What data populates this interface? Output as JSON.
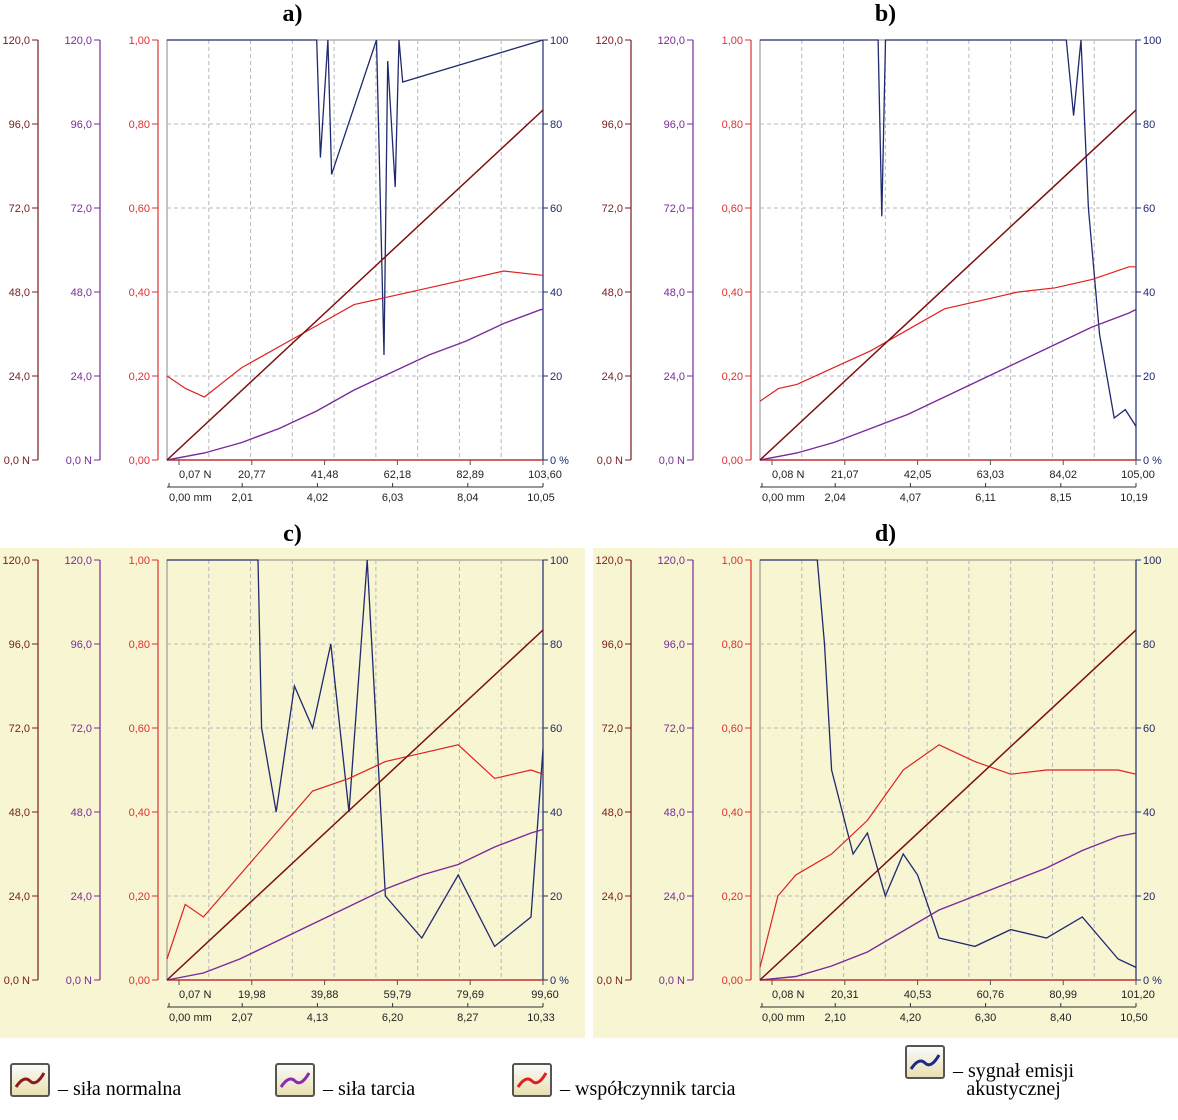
{
  "panels": [
    {
      "id": "a",
      "label": "a)",
      "background": "#ffffff",
      "force_ticks": [
        "0,07 N",
        "20,77",
        "41,48",
        "62,18",
        "82,89",
        "103,60"
      ],
      "dist_ticks": [
        "0,00 mm",
        "2,01",
        "4,02",
        "6,03",
        "8,04",
        "10,05"
      ]
    },
    {
      "id": "b",
      "label": "b)",
      "background": "#ffffff",
      "force_ticks": [
        "0,08 N",
        "21,07",
        "42,05",
        "63,03",
        "84,02",
        "105,00"
      ],
      "dist_ticks": [
        "0,00 mm",
        "2,04",
        "4,07",
        "6,11",
        "8,15",
        "10,19"
      ]
    },
    {
      "id": "c",
      "label": "c)",
      "background": "#f7f5d2",
      "force_ticks": [
        "0,07 N",
        "19,98",
        "39,88",
        "59,79",
        "79,69",
        "99,60"
      ],
      "dist_ticks": [
        "0,00 mm",
        "2,07",
        "4,13",
        "6,20",
        "8,27",
        "10,33"
      ]
    },
    {
      "id": "d",
      "label": "d)",
      "background": "#f7f5d2",
      "force_ticks": [
        "0,08 N",
        "20,31",
        "40,53",
        "60,76",
        "80,99",
        "101,20"
      ],
      "dist_ticks": [
        "0,00 mm",
        "2,10",
        "4,20",
        "6,30",
        "8,40",
        "10,50"
      ]
    }
  ],
  "axes": {
    "normal_force": {
      "ticks": [
        "0,0 N",
        "24,0",
        "48,0",
        "72,0",
        "96,0",
        "120,0"
      ],
      "color": "#7a1c1c"
    },
    "friction_force": {
      "ticks": [
        "0,0 N",
        "24,0",
        "48,0",
        "72,0",
        "96,0",
        "120,0"
      ],
      "color": "#7a2a9a"
    },
    "friction_coeff": {
      "ticks": [
        "0,00",
        "0,20",
        "0,40",
        "0,60",
        "0,80",
        "1,00"
      ],
      "color": "#e03030"
    },
    "acoustic": {
      "ticks": [
        "0 %",
        "20",
        "40",
        "60",
        "80",
        "100"
      ],
      "color": "#1f2a6e"
    }
  },
  "legend": {
    "normal": "– siła normalna",
    "friction": "– siła tarcia",
    "coeff": "– współczynnik tarcia",
    "acoustic_1": "– sygnał emisji",
    "acoustic_2": "akustycznej"
  },
  "chart_data": [
    {
      "type": "line",
      "title": "a)",
      "xlabel": "",
      "ylabel": "",
      "x_force": [
        0.07,
        20.77,
        41.48,
        62.18,
        82.89,
        103.6
      ],
      "x_dist": [
        0.0,
        2.01,
        4.02,
        6.03,
        8.04,
        10.05
      ],
      "series": [
        {
          "name": "siła normalna",
          "unit": "N",
          "x": [
            0,
            10.05
          ],
          "values": [
            0,
            100
          ]
        },
        {
          "name": "siła tarcia",
          "unit": "N",
          "x": [
            0,
            1,
            2,
            3,
            4,
            5,
            6,
            7,
            8,
            9,
            10,
            10.05
          ],
          "values": [
            0,
            2,
            5,
            9,
            14,
            20,
            25,
            30,
            34,
            39,
            43,
            43
          ]
        },
        {
          "name": "współczynnik tarcia",
          "x": [
            0,
            0.5,
            1,
            2,
            3,
            4,
            5,
            6,
            7,
            8,
            9,
            10,
            10.05
          ],
          "values": [
            0.2,
            0.17,
            0.15,
            0.22,
            0.27,
            0.32,
            0.37,
            0.39,
            0.41,
            0.43,
            0.45,
            0.44,
            0.44
          ]
        },
        {
          "name": "sygnał emisji akustycznej",
          "unit": "%",
          "x": [
            0,
            4.0,
            4.1,
            4.3,
            4.4,
            5.6,
            5.8,
            5.9,
            6.1,
            6.2,
            6.3,
            10.05
          ],
          "values": [
            100,
            100,
            72,
            100,
            68,
            100,
            25,
            95,
            65,
            100,
            90,
            100
          ]
        }
      ]
    },
    {
      "type": "line",
      "title": "b)",
      "x_force": [
        0.08,
        21.07,
        42.05,
        63.03,
        84.02,
        105.0
      ],
      "x_dist": [
        0.0,
        2.04,
        4.07,
        6.11,
        8.15,
        10.19
      ],
      "series": [
        {
          "name": "siła normalna",
          "unit": "N",
          "x": [
            0,
            10.19
          ],
          "values": [
            0,
            100
          ]
        },
        {
          "name": "siła tarcia",
          "unit": "N",
          "x": [
            0,
            1,
            2,
            3,
            4,
            5,
            6,
            7,
            8,
            9,
            10,
            10.19
          ],
          "values": [
            0,
            2,
            5,
            9,
            13,
            18,
            23,
            28,
            33,
            38,
            42,
            43
          ]
        },
        {
          "name": "współczynnik tarcia",
          "x": [
            0,
            0.5,
            1,
            2,
            3,
            4,
            5,
            6,
            7,
            8,
            9,
            10,
            10.19
          ],
          "values": [
            0.14,
            0.17,
            0.18,
            0.22,
            0.26,
            0.31,
            0.36,
            0.38,
            0.4,
            0.41,
            0.43,
            0.46,
            0.46
          ]
        },
        {
          "name": "sygnał emisji akustycznej",
          "unit": "%",
          "x": [
            0,
            3.2,
            3.3,
            3.4,
            8.3,
            8.5,
            8.7,
            8.9,
            9.2,
            9.6,
            9.9,
            10.19
          ],
          "values": [
            100,
            100,
            58,
            100,
            100,
            82,
            100,
            60,
            30,
            10,
            12,
            8
          ]
        }
      ]
    },
    {
      "type": "line",
      "title": "c)",
      "x_force": [
        0.07,
        19.98,
        39.88,
        59.79,
        79.69,
        99.6
      ],
      "x_dist": [
        0.0,
        2.07,
        4.13,
        6.2,
        8.27,
        10.33
      ],
      "series": [
        {
          "name": "siła normalna",
          "unit": "N",
          "x": [
            0,
            10.33
          ],
          "values": [
            0,
            100
          ]
        },
        {
          "name": "siła tarcia",
          "unit": "N",
          "x": [
            0,
            1,
            2,
            3,
            4,
            5,
            6,
            7,
            8,
            9,
            10,
            10.33
          ],
          "values": [
            0,
            2,
            6,
            11,
            16,
            21,
            26,
            30,
            33,
            38,
            42,
            43
          ]
        },
        {
          "name": "współczynnik tarcia",
          "x": [
            0,
            0.5,
            1,
            2,
            3,
            4,
            5,
            6,
            7,
            8,
            9,
            10,
            10.33
          ],
          "values": [
            0.05,
            0.18,
            0.15,
            0.25,
            0.35,
            0.45,
            0.48,
            0.52,
            0.54,
            0.56,
            0.48,
            0.5,
            0.49
          ]
        },
        {
          "name": "sygnał emisji akustycznej",
          "unit": "%",
          "x": [
            0,
            2.5,
            2.6,
            3.0,
            3.5,
            4.0,
            4.5,
            5.0,
            5.5,
            6.0,
            7.0,
            8.0,
            9.0,
            10.0,
            10.33
          ],
          "values": [
            100,
            100,
            60,
            40,
            70,
            60,
            80,
            40,
            100,
            20,
            10,
            25,
            8,
            15,
            55
          ]
        }
      ]
    },
    {
      "type": "line",
      "title": "d)",
      "x_force": [
        0.08,
        20.31,
        40.53,
        60.76,
        80.99,
        101.2
      ],
      "x_dist": [
        0.0,
        2.1,
        4.2,
        6.3,
        8.4,
        10.5
      ],
      "series": [
        {
          "name": "siła normalna",
          "unit": "N",
          "x": [
            0,
            10.5
          ],
          "values": [
            0,
            100
          ]
        },
        {
          "name": "siła tarcia",
          "unit": "N",
          "x": [
            0,
            1,
            2,
            3,
            4,
            5,
            6,
            7,
            8,
            9,
            10,
            10.5
          ],
          "values": [
            0,
            1,
            4,
            8,
            14,
            20,
            24,
            28,
            32,
            37,
            41,
            42
          ]
        },
        {
          "name": "współczynnik tarcia",
          "x": [
            0,
            0.5,
            1,
            2,
            3,
            4,
            5,
            6,
            7,
            8,
            9,
            10,
            10.5
          ],
          "values": [
            0.03,
            0.2,
            0.25,
            0.3,
            0.38,
            0.5,
            0.56,
            0.52,
            0.49,
            0.5,
            0.5,
            0.5,
            0.49
          ]
        },
        {
          "name": "sygnał emisji akustycznej",
          "unit": "%",
          "x": [
            0,
            1.5,
            1.6,
            1.8,
            2.0,
            2.6,
            3.0,
            3.5,
            4.0,
            4.4,
            5.0,
            6.0,
            7.0,
            8.0,
            9.0,
            10.0,
            10.5
          ],
          "values": [
            100,
            100,
            100,
            80,
            50,
            30,
            35,
            20,
            30,
            25,
            10,
            8,
            12,
            10,
            15,
            5,
            3
          ]
        }
      ]
    }
  ]
}
